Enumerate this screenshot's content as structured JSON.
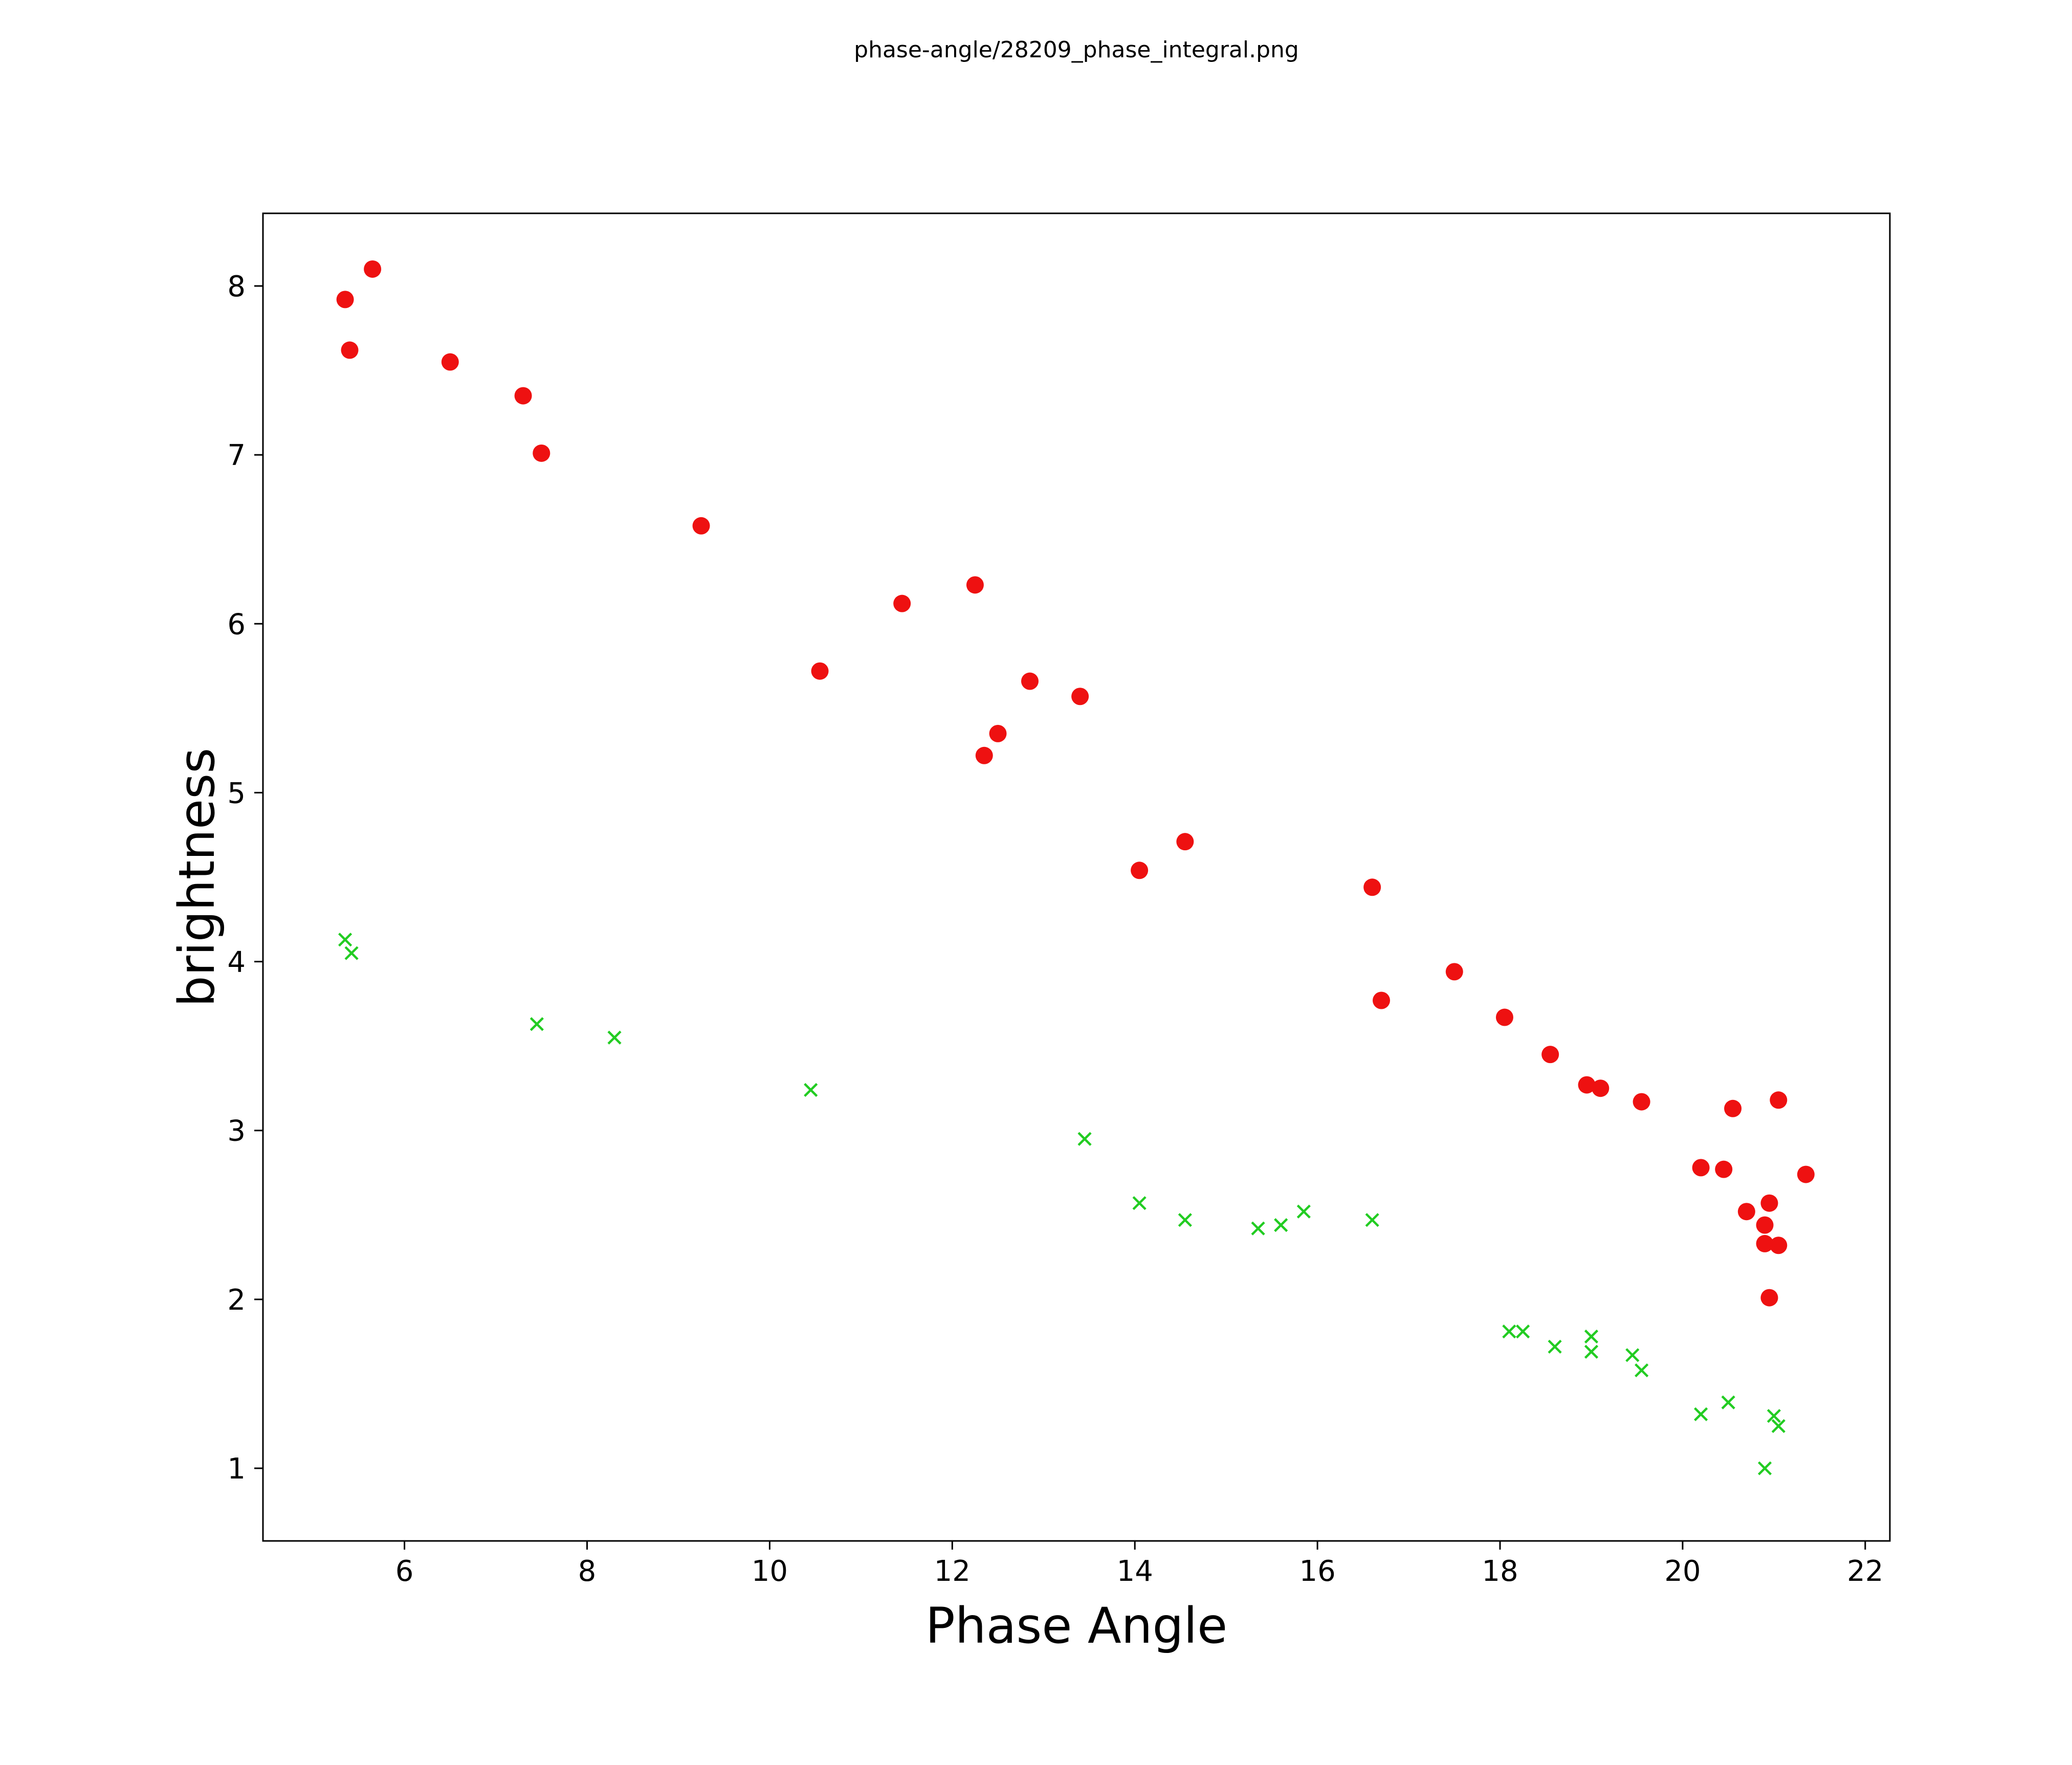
{
  "chart_data": {
    "type": "scatter",
    "title": "phase-angle/28209_phase_integral.png",
    "xlabel": "Phase Angle",
    "ylabel": "brightness",
    "xlim": [
      4.45,
      22.27
    ],
    "ylim": [
      0.57,
      8.43
    ],
    "xticks": [
      6,
      8,
      10,
      12,
      14,
      16,
      18,
      20,
      22
    ],
    "yticks": [
      1,
      2,
      3,
      4,
      5,
      6,
      7,
      8
    ],
    "grid": false,
    "legend": "none",
    "colors": {
      "series1": "#ee1111",
      "series2": "#22cc22",
      "axis": "#000000"
    },
    "series": [
      {
        "name": "filled-red-circles",
        "marker": "circle",
        "color": "#ee1111",
        "points": [
          [
            5.35,
            7.92
          ],
          [
            5.65,
            8.1
          ],
          [
            5.4,
            7.62
          ],
          [
            6.5,
            7.55
          ],
          [
            7.3,
            7.35
          ],
          [
            7.5,
            7.01
          ],
          [
            9.25,
            6.58
          ],
          [
            10.55,
            5.72
          ],
          [
            11.45,
            6.12
          ],
          [
            12.25,
            6.23
          ],
          [
            12.35,
            5.22
          ],
          [
            12.5,
            5.35
          ],
          [
            12.85,
            5.66
          ],
          [
            13.4,
            5.57
          ],
          [
            14.05,
            4.54
          ],
          [
            14.55,
            4.71
          ],
          [
            16.6,
            4.44
          ],
          [
            16.7,
            3.77
          ],
          [
            17.5,
            3.94
          ],
          [
            18.05,
            3.67
          ],
          [
            18.55,
            3.45
          ],
          [
            18.95,
            3.27
          ],
          [
            19.1,
            3.25
          ],
          [
            19.55,
            3.17
          ],
          [
            20.2,
            2.78
          ],
          [
            20.45,
            2.77
          ],
          [
            20.55,
            3.13
          ],
          [
            21.05,
            3.18
          ],
          [
            21.35,
            2.74
          ],
          [
            20.7,
            2.52
          ],
          [
            20.95,
            2.57
          ],
          [
            20.9,
            2.44
          ],
          [
            20.9,
            2.33
          ],
          [
            21.05,
            2.32
          ],
          [
            20.95,
            2.01
          ]
        ]
      },
      {
        "name": "green-x-markers",
        "marker": "x",
        "color": "#22cc22",
        "points": [
          [
            5.35,
            4.13
          ],
          [
            5.42,
            4.05
          ],
          [
            7.45,
            3.63
          ],
          [
            8.3,
            3.55
          ],
          [
            10.45,
            3.24
          ],
          [
            13.45,
            2.95
          ],
          [
            14.05,
            2.57
          ],
          [
            14.55,
            2.47
          ],
          [
            15.35,
            2.42
          ],
          [
            15.6,
            2.44
          ],
          [
            15.85,
            2.52
          ],
          [
            16.6,
            2.47
          ],
          [
            18.1,
            1.81
          ],
          [
            18.25,
            1.81
          ],
          [
            18.6,
            1.72
          ],
          [
            19.0,
            1.78
          ],
          [
            19.0,
            1.69
          ],
          [
            19.45,
            1.67
          ],
          [
            19.55,
            1.58
          ],
          [
            20.2,
            1.32
          ],
          [
            20.5,
            1.39
          ],
          [
            21.0,
            1.31
          ],
          [
            21.05,
            1.25
          ],
          [
            20.9,
            1.0
          ]
        ]
      }
    ]
  }
}
